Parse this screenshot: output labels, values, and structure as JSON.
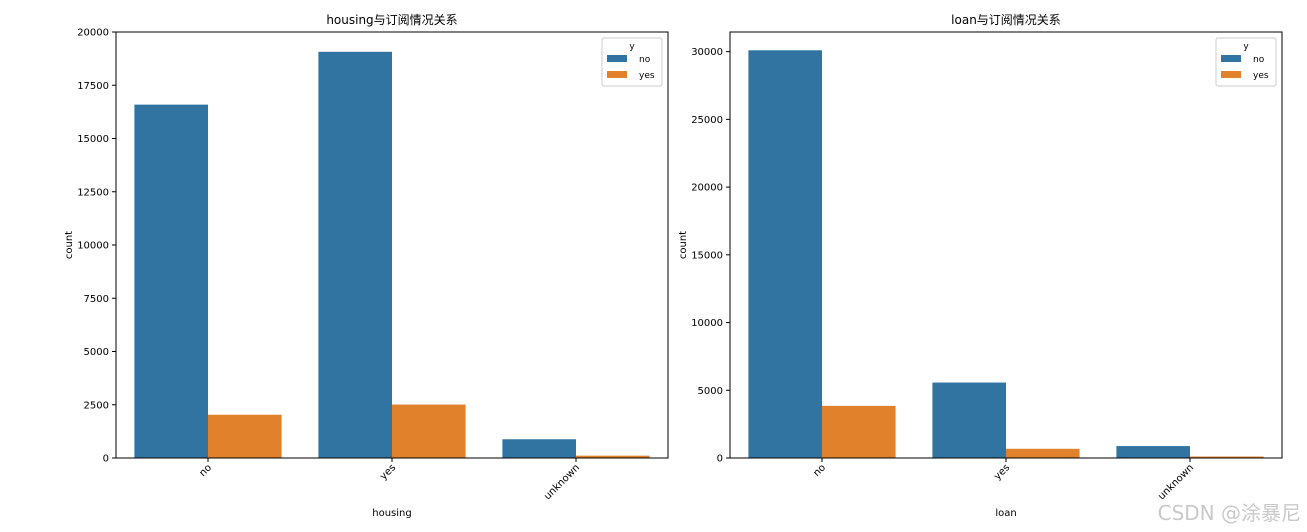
{
  "chart_data": [
    {
      "type": "bar",
      "title": "housing与订阅情况关系",
      "xlabel": "housing",
      "ylabel": "count",
      "categories": [
        "no",
        "yes",
        "unknown"
      ],
      "series": [
        {
          "name": "no",
          "values": [
            16590,
            19070,
            880
          ],
          "color": "#3274a1"
        },
        {
          "name": "yes",
          "values": [
            2030,
            2510,
            110
          ],
          "color": "#e1812c"
        }
      ],
      "ylim": [
        0,
        20000
      ],
      "yticks": [
        0,
        2500,
        5000,
        7500,
        10000,
        12500,
        15000,
        17500,
        20000
      ],
      "legend": {
        "title": "y",
        "placement": "top-right"
      }
    },
    {
      "type": "bar",
      "title": "loan与订阅情况关系",
      "xlabel": "loan",
      "ylabel": "count",
      "categories": [
        "no",
        "yes",
        "unknown"
      ],
      "series": [
        {
          "name": "no",
          "values": [
            30100,
            5570,
            880
          ],
          "color": "#3274a1"
        },
        {
          "name": "yes",
          "values": [
            3850,
            680,
            110
          ],
          "color": "#e1812c"
        }
      ],
      "ylim": [
        0,
        31450
      ],
      "yticks": [
        0,
        5000,
        10000,
        15000,
        20000,
        25000,
        30000
      ],
      "legend": {
        "title": "y",
        "placement": "top-right"
      }
    }
  ],
  "watermark": "CSDN @涂暴尼"
}
